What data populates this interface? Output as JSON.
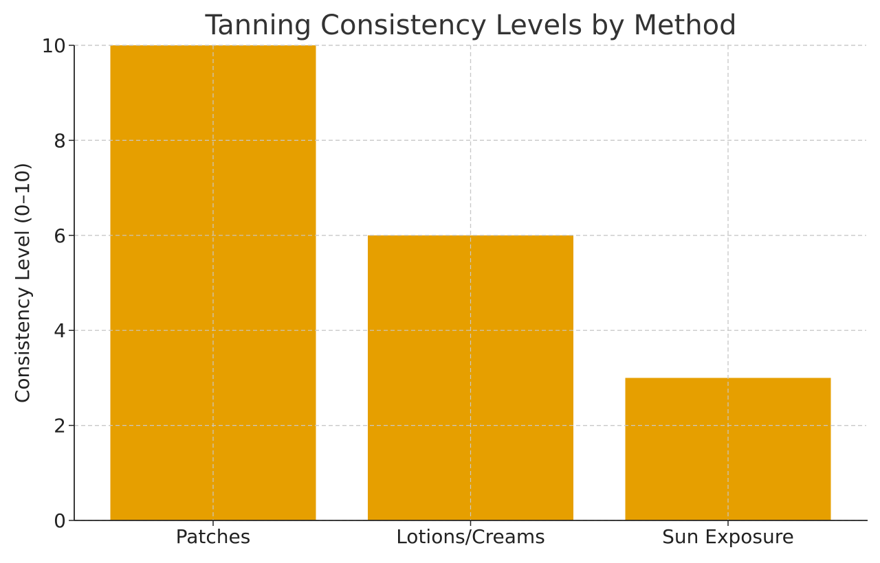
{
  "chart_data": {
    "type": "bar",
    "title": "Tanning Consistency Levels by Method",
    "xlabel": "",
    "ylabel": "Consistency Level (0–10)",
    "categories": [
      "Patches",
      "Lotions/Creams",
      "Sun Exposure"
    ],
    "values": [
      10,
      6,
      3
    ],
    "ylim": [
      0,
      10
    ],
    "yticks": [
      "0",
      "2",
      "4",
      "6",
      "8",
      "10"
    ],
    "grid": true,
    "bar_color": "#E69F00"
  }
}
